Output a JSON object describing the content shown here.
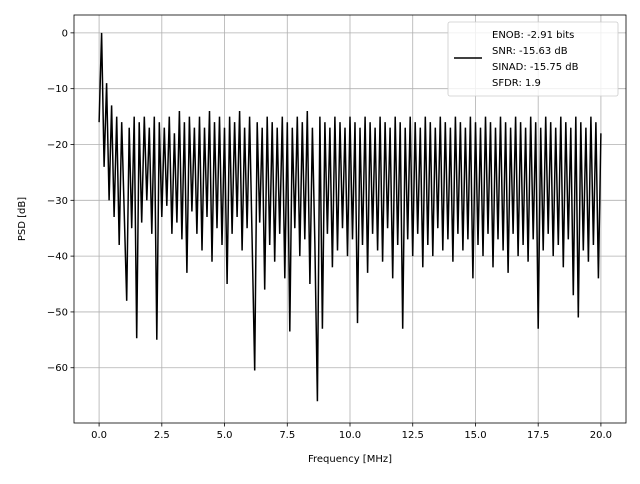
{
  "chart_data": {
    "type": "line",
    "title": "",
    "xlabel": "Frequency [MHz]",
    "ylabel": "PSD [dB]",
    "xlim": [
      -1.0,
      21.0
    ],
    "ylim": [
      -69.9,
      3.2
    ],
    "grid": true,
    "xticks": [
      0.0,
      2.5,
      5.0,
      7.5,
      10.0,
      12.5,
      15.0,
      17.5,
      20.0
    ],
    "xtick_labels": [
      "0.0",
      "2.5",
      "5.0",
      "7.5",
      "10.0",
      "12.5",
      "15.0",
      "17.5",
      "20.0"
    ],
    "yticks": [
      0,
      -10,
      -20,
      -30,
      -40,
      -50,
      -60
    ],
    "ytick_labels": [
      "0",
      "−10",
      "−20",
      "−30",
      "−40",
      "−50",
      "−60"
    ],
    "legend": {
      "placement": "top-right",
      "entries": [
        "ENOB: -2.91 bits",
        "SNR: -15.63 dB",
        "SINAD: -15.75 dB",
        "SFDR: 1.9"
      ]
    },
    "series": [
      {
        "name": "PSD",
        "color": "#000000",
        "x_start": 0.0,
        "x_step": 0.1,
        "values": [
          -16,
          0,
          -24,
          -9,
          -30,
          -13,
          -33,
          -15,
          -38,
          -16,
          -32,
          -48,
          -17,
          -35,
          -15,
          -54.7,
          -16,
          -34,
          -15,
          -30,
          -17,
          -36,
          -15,
          -55,
          -16,
          -33,
          -17,
          -31,
          -15,
          -36,
          -18,
          -34,
          -14,
          -37,
          -16,
          -43,
          -15,
          -32,
          -17,
          -36,
          -15,
          -39,
          -17,
          -33,
          -14,
          -41,
          -16,
          -35,
          -15,
          -38,
          -17,
          -45,
          -15,
          -36,
          -16,
          -33,
          -14,
          -39,
          -17,
          -35,
          -15,
          -37,
          -60.5,
          -16,
          -34,
          -17,
          -46,
          -15,
          -38,
          -16,
          -41,
          -17,
          -36,
          -15,
          -44,
          -16,
          -53.5,
          -17,
          -35,
          -15,
          -40,
          -16,
          -37,
          -14,
          -45,
          -17,
          -38,
          -66,
          -15,
          -53,
          -16,
          -36,
          -17,
          -42,
          -15,
          -39,
          -16,
          -35,
          -17,
          -40,
          -15,
          -37,
          -16,
          -52,
          -17,
          -38,
          -15,
          -43,
          -16,
          -36,
          -17,
          -39,
          -15,
          -41,
          -16,
          -35,
          -17,
          -44,
          -15,
          -38,
          -16,
          -53,
          -17,
          -37,
          -15,
          -40,
          -16,
          -36,
          -17,
          -42,
          -15,
          -38,
          -16,
          -40,
          -17,
          -35,
          -15,
          -39,
          -16,
          -37,
          -17,
          -41,
          -15,
          -36,
          -16,
          -39,
          -17,
          -37,
          -15,
          -44,
          -16,
          -38,
          -17,
          -40,
          -15,
          -36,
          -16,
          -42,
          -17,
          -37,
          -15,
          -39,
          -16,
          -43,
          -17,
          -36,
          -15,
          -40,
          -16,
          -38,
          -17,
          -41,
          -15,
          -37,
          -16,
          -53,
          -17,
          -39,
          -15,
          -36,
          -16,
          -40,
          -17,
          -38,
          -15,
          -42,
          -16,
          -37,
          -17,
          -47,
          -15,
          -51,
          -16,
          -39,
          -17,
          -41,
          -15,
          -38,
          -16,
          -44,
          -18
        ]
      }
    ]
  }
}
